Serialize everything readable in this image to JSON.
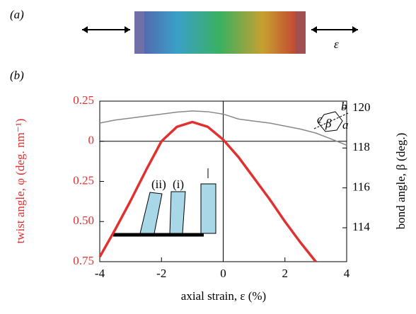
{
  "chart_data": {
    "type": "line",
    "panel_labels": [
      "(a)",
      "(b)"
    ],
    "strain_symbol": "ε",
    "xlabel": "axial strain, ε (%)",
    "ylabel": "twist angle, φ (deg. nm⁻¹)",
    "y2label": "bond angle, β (deg.)",
    "inset_labels": [
      "(ii)",
      "(i)"
    ],
    "hexagon_labels": [
      "a",
      "b",
      "c",
      "β"
    ],
    "x": [
      -4,
      -3.5,
      -3,
      -2.5,
      -2,
      -1.5,
      -1,
      -0.5,
      0,
      0.5,
      1,
      1.5,
      2,
      2.5,
      3,
      3.5,
      4
    ],
    "series": [
      {
        "name": "twist angle",
        "color": "#e03030",
        "axis": "y",
        "values": [
          -0.72,
          -0.55,
          -0.37,
          -0.18,
          0,
          0.09,
          0.12,
          0.09,
          0.01,
          -0.1,
          -0.23,
          -0.36,
          -0.5,
          -0.63,
          -0.75,
          null,
          null
        ]
      },
      {
        "name": "bond angle",
        "color": "#888888",
        "axis": "y2",
        "values": [
          119.25,
          119.4,
          119.5,
          119.6,
          119.7,
          119.8,
          119.86,
          119.82,
          119.7,
          119.45,
          119.35,
          119.25,
          119.1,
          118.95,
          118.75,
          118.45,
          118.14
        ]
      }
    ],
    "xlim": [
      -4,
      4
    ],
    "xticks": [
      -4,
      -2,
      0,
      2,
      4
    ],
    "ylim": [
      -0.75,
      0.25
    ],
    "yticks": [
      0.25,
      0,
      {
        "value": -0.25,
        "label": "0.25"
      },
      {
        "value": -0.5,
        "label": "0.50"
      },
      {
        "value": -0.75,
        "label": "0.75"
      }
    ],
    "y2lim": [
      112.3,
      120.35
    ],
    "y2ticks": [
      114,
      116,
      118,
      120
    ]
  }
}
